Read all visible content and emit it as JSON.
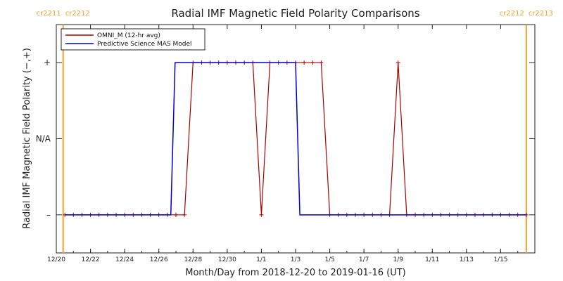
{
  "chart_data": {
    "type": "line",
    "title": "Radial IMF Magnetic Field Polarity Comparisons",
    "xlabel": "Month/Day from 2018-12-20 to 2019-01-16 (UT)",
    "ylabel": "Radial IMF Magnetic Field Polarity (−,+)",
    "x_start_date": "2018-12-20",
    "xlim": [
      0,
      28
    ],
    "ylim": [
      -1.5,
      1.5
    ],
    "x_ticks": [
      {
        "x": 0,
        "label": "12/20"
      },
      {
        "x": 2,
        "label": "12/22"
      },
      {
        "x": 4,
        "label": "12/24"
      },
      {
        "x": 6,
        "label": "12/26"
      },
      {
        "x": 8,
        "label": "12/28"
      },
      {
        "x": 10,
        "label": "12/30"
      },
      {
        "x": 12,
        "label": "1/1"
      },
      {
        "x": 14,
        "label": "1/3"
      },
      {
        "x": 16,
        "label": "1/5"
      },
      {
        "x": 18,
        "label": "1/7"
      },
      {
        "x": 20,
        "label": "1/9"
      },
      {
        "x": 22,
        "label": "1/11"
      },
      {
        "x": 24,
        "label": "1/13"
      },
      {
        "x": 26,
        "label": "1/15"
      }
    ],
    "y_ticks": [
      {
        "y": 1,
        "label": "+"
      },
      {
        "y": 0,
        "label": "N/A"
      },
      {
        "y": -1,
        "label": "–"
      }
    ],
    "carrington_markers": [
      {
        "x": 0.4,
        "left": "cr2211",
        "right": "cr2212",
        "position": "left"
      },
      {
        "x": 27.5,
        "left": "cr2212",
        "right": "cr2213",
        "position": "right"
      }
    ],
    "marker_color": "#f0a030",
    "legend": {
      "position": "top-left",
      "entries": [
        {
          "name": "OMNI_M (12-hr avg)",
          "color": "#aa0000"
        },
        {
          "name": "Predictive Science MAS Model",
          "color": "#0000cc"
        }
      ]
    },
    "series": [
      {
        "name": "OMNI_M (12-hr avg)",
        "color": "#aa0000",
        "points": [
          [
            0.5,
            -1
          ],
          [
            1.0,
            -1
          ],
          [
            1.5,
            -1
          ],
          [
            2.0,
            -1
          ],
          [
            2.5,
            -1
          ],
          [
            3.0,
            -1
          ],
          [
            3.5,
            -1
          ],
          [
            4.0,
            -1
          ],
          [
            4.5,
            -1
          ],
          [
            5.0,
            -1
          ],
          [
            5.5,
            -1
          ],
          [
            6.0,
            -1
          ],
          [
            6.5,
            -1
          ],
          [
            7.0,
            -1
          ],
          [
            7.5,
            -1
          ],
          [
            8.0,
            1
          ],
          [
            8.5,
            1
          ],
          [
            9.0,
            1
          ],
          [
            9.5,
            1
          ],
          [
            10.0,
            1
          ],
          [
            10.5,
            1
          ],
          [
            11.0,
            1
          ],
          [
            11.5,
            1
          ],
          [
            12.0,
            -1
          ],
          [
            12.5,
            1
          ],
          [
            13.0,
            1
          ],
          [
            13.5,
            1
          ],
          [
            14.0,
            1
          ],
          [
            14.5,
            1
          ],
          [
            15.0,
            1
          ],
          [
            15.5,
            1
          ],
          [
            16.0,
            -1
          ],
          [
            16.5,
            -1
          ],
          [
            17.0,
            -1
          ],
          [
            17.5,
            -1
          ],
          [
            18.0,
            -1
          ],
          [
            18.5,
            -1
          ],
          [
            19.0,
            -1
          ],
          [
            19.5,
            -1
          ],
          [
            20.0,
            1
          ],
          [
            20.5,
            -1
          ],
          [
            21.0,
            -1
          ],
          [
            21.5,
            -1
          ],
          [
            22.0,
            -1
          ],
          [
            22.5,
            -1
          ],
          [
            23.0,
            -1
          ],
          [
            23.5,
            -1
          ],
          [
            24.0,
            -1
          ],
          [
            24.5,
            -1
          ],
          [
            25.0,
            -1
          ],
          [
            25.5,
            -1
          ],
          [
            26.0,
            -1
          ],
          [
            26.5,
            -1
          ],
          [
            27.0,
            -1
          ],
          [
            27.5,
            -1
          ]
        ]
      },
      {
        "name": "Predictive Science MAS Model",
        "color": "#0000cc",
        "points": [
          [
            0.5,
            -1
          ],
          [
            6.7,
            -1
          ],
          [
            6.95,
            1
          ],
          [
            14.0,
            1
          ],
          [
            14.25,
            -1
          ],
          [
            27.5,
            -1
          ]
        ]
      }
    ]
  }
}
